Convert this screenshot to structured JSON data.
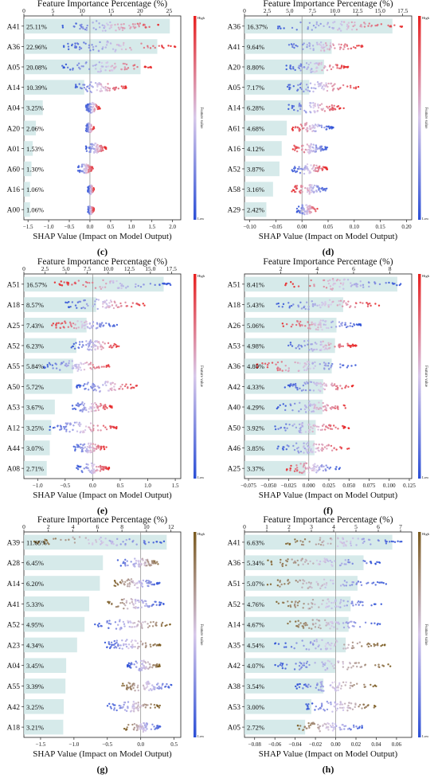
{
  "chart_data": [
    {
      "type": "bar",
      "panel_label": "(c)",
      "title": "Feature Importance Percentage (%)",
      "xlabel": "SHAP Value (Impact on Model Output)",
      "colorbar": {
        "title": "Feature value",
        "high": "High",
        "low": "Low",
        "low_color": "#2b4fd6",
        "high_color": "#e8201f"
      },
      "pct_axis": {
        "lim": [
          0,
          27
        ],
        "ticks": [
          0,
          5,
          10,
          15,
          20,
          25
        ],
        "tick_labels": [
          "0",
          "5",
          "10",
          "15",
          "20",
          "25"
        ]
      },
      "shap_axis": {
        "lim": [
          -1.6,
          2.2
        ],
        "ticks": [
          -1.5,
          -1.0,
          -0.5,
          0.0,
          0.5,
          1.0,
          1.5,
          2.0
        ],
        "tick_labels": [
          "−1.5",
          "−1.0",
          "−0.5",
          "0.0",
          "0.5",
          "1.0",
          "1.5",
          "2.0"
        ]
      },
      "categories": [
        "A41",
        "A36",
        "A05",
        "A14",
        "A04",
        "A20",
        "A01",
        "A60",
        "A16",
        "A00"
      ],
      "values": [
        25.11,
        22.96,
        20.08,
        10.39,
        3.25,
        2.06,
        1.53,
        1.3,
        1.06,
        1.06
      ],
      "value_labels": [
        "25.11%",
        "22.96%",
        "20.08%",
        "10.39%",
        "3.25%",
        "2.06%",
        "1.53%",
        "1.30%",
        "1.06%",
        "1.06%"
      ],
      "shap_ranges": [
        [
          -0.7,
          1.8
        ],
        [
          -0.7,
          2.1
        ],
        [
          -0.7,
          1.5
        ],
        [
          -0.4,
          0.9
        ],
        [
          -0.1,
          0.25
        ],
        [
          -0.1,
          0.1
        ],
        [
          -0.1,
          0.4
        ],
        [
          -0.3,
          0.1
        ],
        [
          -0.05,
          0.1
        ],
        [
          -0.05,
          0.1
        ]
      ],
      "low_sides": [
        "left",
        "left",
        "left",
        "left",
        "left",
        "left",
        "left",
        "left",
        "left",
        "left"
      ]
    },
    {
      "type": "bar",
      "panel_label": "(d)",
      "title": "Feature Importance Percentage (%)",
      "xlabel": "SHAP Value (Impact on Model Output)",
      "colorbar": {
        "title": "Feature value",
        "high": "High",
        "low": "Low",
        "low_color": "#2b4fd6",
        "high_color": "#e8201f"
      },
      "pct_axis": {
        "lim": [
          0,
          18.5
        ],
        "ticks": [
          0,
          2.5,
          5.0,
          7.5,
          10.0,
          12.5,
          15.0,
          17.5
        ],
        "tick_labels": [
          "0",
          "2.5",
          "5.0",
          "7.5",
          "10.0",
          "12.5",
          "15.0",
          "17.5"
        ]
      },
      "shap_axis": {
        "lim": [
          -0.11,
          0.21
        ],
        "ticks": [
          -0.1,
          -0.05,
          0.0,
          0.05,
          0.1,
          0.15,
          0.2
        ],
        "tick_labels": [
          "−0.10",
          "−0.05",
          "0.00",
          "0.05",
          "0.10",
          "0.15",
          "0.20"
        ]
      },
      "categories": [
        "A36",
        "A41",
        "A20",
        "A05",
        "A14",
        "A61",
        "A16",
        "A52",
        "A58",
        "A29"
      ],
      "values": [
        16.37,
        9.64,
        8.8,
        7.17,
        6.28,
        4.68,
        4.12,
        3.87,
        3.16,
        2.42
      ],
      "value_labels": [
        "16.37%",
        "9.64%",
        "8.80%",
        "7.17%",
        "6.28%",
        "4.68%",
        "4.12%",
        "3.87%",
        "3.16%",
        "2.42%"
      ],
      "shap_ranges": [
        [
          -0.05,
          0.2
        ],
        [
          -0.04,
          0.12
        ],
        [
          -0.03,
          0.09
        ],
        [
          -0.03,
          0.11
        ],
        [
          -0.03,
          0.08
        ],
        [
          -0.02,
          0.06
        ],
        [
          -0.02,
          0.05
        ],
        [
          -0.02,
          0.05
        ],
        [
          -0.02,
          0.05
        ],
        [
          -0.01,
          0.03
        ]
      ],
      "low_sides": [
        "left",
        "left",
        "left",
        "left",
        "left",
        "right",
        "right",
        "left",
        "right",
        "left"
      ]
    },
    {
      "type": "bar",
      "panel_label": "(e)",
      "title": "Feature Importance Percentage (%)",
      "xlabel": "SHAP Value (Impact on Model Output)",
      "colorbar": {
        "title": "Feature value",
        "high": "High",
        "low": "Low",
        "low_color": "#2b4fd6",
        "high_color": "#e8201f"
      },
      "pct_axis": {
        "lim": [
          0,
          18.6
        ],
        "ticks": [
          0,
          2.5,
          5.0,
          7.5,
          10.0,
          12.5,
          15.0,
          17.5
        ],
        "tick_labels": [
          "0",
          "2.5",
          "5.0",
          "7.5",
          "10.0",
          "12.5",
          "15.0",
          "17.5"
        ]
      },
      "shap_axis": {
        "lim": [
          -1.25,
          1.6
        ],
        "ticks": [
          -1.0,
          -0.5,
          0.0,
          0.5,
          1.0,
          1.5
        ],
        "tick_labels": [
          "−1.0",
          "−0.5",
          "0.0",
          "0.5",
          "1.0",
          "1.5"
        ]
      },
      "categories": [
        "A51",
        "A18",
        "A25",
        "A52",
        "A55",
        "A50",
        "A53",
        "A12",
        "A44",
        "A08"
      ],
      "values": [
        16.57,
        8.57,
        7.43,
        6.23,
        5.84,
        5.72,
        3.67,
        3.25,
        3.07,
        2.71
      ],
      "value_labels": [
        "16.57%",
        "8.57%",
        "7.43%",
        "6.23%",
        "5.84%",
        "5.72%",
        "3.67%",
        "3.25%",
        "3.07%",
        "2.71%"
      ],
      "shap_ranges": [
        [
          -0.7,
          1.45
        ],
        [
          -0.5,
          0.95
        ],
        [
          -0.75,
          0.45
        ],
        [
          -0.4,
          0.5
        ],
        [
          -0.9,
          0.4
        ],
        [
          -0.3,
          0.85
        ],
        [
          -0.4,
          0.35
        ],
        [
          -0.8,
          0.5
        ],
        [
          -0.35,
          0.25
        ],
        [
          -0.3,
          0.3
        ]
      ],
      "low_sides": [
        "right",
        "left",
        "right",
        "left",
        "left",
        "left",
        "left",
        "left",
        "left",
        "left"
      ]
    },
    {
      "type": "bar",
      "panel_label": "(f)",
      "title": "Feature Importance Percentage (%)",
      "xlabel": "SHAP Value (Impact on Model Output)",
      "colorbar": {
        "title": "Feature value",
        "high": "High",
        "low": "Low",
        "low_color": "#2b4fd6",
        "high_color": "#e8201f"
      },
      "pct_axis": {
        "lim": [
          0,
          9.2
        ],
        "ticks": [
          2,
          4,
          6,
          8
        ],
        "tick_labels": [
          "2",
          "4",
          "6",
          "8"
        ]
      },
      "shap_axis": {
        "lim": [
          -0.08,
          0.128
        ],
        "ticks": [
          -0.075,
          -0.05,
          -0.025,
          0.0,
          0.025,
          0.05,
          0.075,
          0.1,
          0.125
        ],
        "tick_labels": [
          "−0.075",
          "−0.050",
          "−0.025",
          "0.000",
          "0.025",
          "0.050",
          "0.075",
          "0.100",
          "0.125"
        ]
      },
      "categories": [
        "A51",
        "A18",
        "A26",
        "A53",
        "A36",
        "A42",
        "A40",
        "A50",
        "A46",
        "A25"
      ],
      "values": [
        8.41,
        5.43,
        5.06,
        4.98,
        4.8,
        4.33,
        4.29,
        3.92,
        3.85,
        3.37
      ],
      "value_labels": [
        "8.41%",
        "5.43%",
        "5.06%",
        "4.98%",
        "4.80%",
        "4.33%",
        "4.29%",
        "3.92%",
        "3.85%",
        "3.37%"
      ],
      "shap_ranges": [
        [
          -0.03,
          0.115
        ],
        [
          -0.04,
          0.09
        ],
        [
          -0.035,
          0.065
        ],
        [
          -0.03,
          0.06
        ],
        [
          -0.07,
          0.06
        ],
        [
          -0.03,
          0.06
        ],
        [
          -0.04,
          0.055
        ],
        [
          -0.05,
          0.05
        ],
        [
          -0.04,
          0.05
        ],
        [
          -0.03,
          0.04
        ]
      ],
      "low_sides": [
        "right",
        "left",
        "right",
        "left",
        "right",
        "left",
        "left",
        "left",
        "left",
        "right"
      ]
    },
    {
      "type": "bar",
      "panel_label": "(g)",
      "title": "Feature Importance Percentage (%)",
      "xlabel": "SHAP Value (Impact on Model Output)",
      "colorbar": {
        "title": "Feature value",
        "high": "High",
        "low": "Low",
        "low_color": "#2b4fd6",
        "high_color": "#7a5a1e"
      },
      "pct_axis": {
        "lim": [
          0,
          12.8
        ],
        "ticks": [
          0,
          2,
          4,
          6,
          8,
          10,
          12
        ],
        "tick_labels": [
          "0",
          "2",
          "4",
          "6",
          "8",
          "10",
          "12"
        ]
      },
      "shap_axis": {
        "lim": [
          -1.75,
          0.6
        ],
        "ticks": [
          -1.5,
          -1.0,
          -0.5,
          0.0,
          0.5
        ],
        "tick_labels": [
          "−1.5",
          "−1.0",
          "−0.5",
          "0.0",
          "0.5"
        ]
      },
      "categories": [
        "A39",
        "A28",
        "A14",
        "A41",
        "A52",
        "A23",
        "A04",
        "A55",
        "A42",
        "A18"
      ],
      "values": [
        11.65,
        6.45,
        6.2,
        5.33,
        4.95,
        4.34,
        3.45,
        3.39,
        3.25,
        3.21
      ],
      "value_labels": [
        "11.65%",
        "6.45%",
        "6.20%",
        "5.33%",
        "4.95%",
        "4.34%",
        "3.45%",
        "3.39%",
        "3.25%",
        "3.21%"
      ],
      "shap_ranges": [
        [
          -1.6,
          0.4
        ],
        [
          -0.35,
          0.3
        ],
        [
          -0.4,
          0.3
        ],
        [
          -0.5,
          0.35
        ],
        [
          -0.7,
          0.45
        ],
        [
          -0.55,
          0.3
        ],
        [
          -0.2,
          0.3
        ],
        [
          -0.3,
          0.5
        ],
        [
          -0.5,
          0.3
        ],
        [
          -0.25,
          0.3
        ]
      ],
      "low_sides": [
        "right",
        "left",
        "right",
        "right",
        "left",
        "left",
        "left",
        "right",
        "left",
        "right"
      ]
    },
    {
      "type": "bar",
      "panel_label": "(h)",
      "title": "Feature Importance Percentage (%)",
      "xlabel": "SHAP Value (Impact on Model Output)",
      "colorbar": {
        "title": "Feature value",
        "high": "High",
        "low": "Low",
        "low_color": "#2b4fd6",
        "high_color": "#7a5a1e"
      },
      "pct_axis": {
        "lim": [
          0,
          7.5
        ],
        "ticks": [
          0,
          1,
          2,
          3,
          4,
          5,
          6,
          7
        ],
        "tick_labels": [
          "0",
          "1",
          "2",
          "3",
          "4",
          "5",
          "6",
          "7"
        ]
      },
      "shap_axis": {
        "lim": [
          -0.09,
          0.075
        ],
        "ticks": [
          -0.08,
          -0.06,
          -0.04,
          -0.02,
          0.0,
          0.02,
          0.04,
          0.06
        ],
        "tick_labels": [
          "−0.08",
          "−0.06",
          "−0.04",
          "−0.02",
          "0.00",
          "0.02",
          "0.04",
          "0.06"
        ]
      },
      "categories": [
        "A41",
        "A36",
        "A51",
        "A52",
        "A14",
        "A35",
        "A42",
        "A38",
        "A53",
        "A05"
      ],
      "values": [
        6.63,
        5.34,
        5.07,
        4.76,
        4.67,
        4.54,
        4.07,
        3.54,
        3.0,
        2.72
      ],
      "value_labels": [
        "6.63%",
        "5.34%",
        "5.07%",
        "4.76%",
        "4.67%",
        "4.54%",
        "4.07%",
        "3.54%",
        "3.00%",
        "2.72%"
      ],
      "shap_ranges": [
        [
          -0.05,
          0.065
        ],
        [
          -0.07,
          0.045
        ],
        [
          -0.07,
          0.05
        ],
        [
          -0.06,
          0.045
        ],
        [
          -0.05,
          0.045
        ],
        [
          -0.06,
          0.05
        ],
        [
          -0.06,
          0.055
        ],
        [
          -0.04,
          0.04
        ],
        [
          -0.03,
          0.04
        ],
        [
          -0.04,
          0.03
        ]
      ],
      "low_sides": [
        "right",
        "right",
        "right",
        "right",
        "right",
        "left",
        "left",
        "left",
        "left",
        "right"
      ]
    }
  ]
}
